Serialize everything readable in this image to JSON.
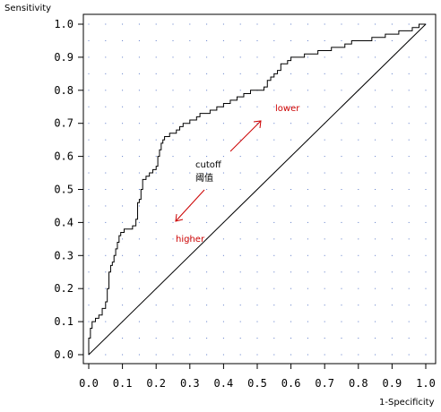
{
  "chart_data": {
    "type": "line",
    "ylabel": "Sensitivity",
    "xlabel": "1-Specificity",
    "xlim": [
      0,
      1
    ],
    "ylim": [
      0,
      1
    ],
    "xticks": [
      "0.0",
      "0.1",
      "0.2",
      "0.3",
      "0.4",
      "0.5",
      "0.6",
      "0.7",
      "0.8",
      "0.9",
      "1.0"
    ],
    "yticks": [
      "0.0",
      "0.1",
      "0.2",
      "0.3",
      "0.4",
      "0.5",
      "0.6",
      "0.7",
      "0.8",
      "0.9",
      "1.0"
    ],
    "grid": "dotted",
    "series": [
      {
        "x": [
          0,
          0,
          0.005,
          0.005,
          0.01,
          0.01,
          0.02,
          0.02,
          0.03,
          0.03,
          0.04,
          0.04,
          0.05,
          0.055,
          0.06,
          0.06,
          0.065,
          0.07,
          0.075,
          0.08,
          0.085,
          0.09,
          0.095,
          0.1,
          0.105,
          0.11,
          0.115,
          0.12,
          0.13,
          0.14,
          0.145,
          0.15,
          0.155,
          0.16,
          0.165,
          0.17,
          0.175,
          0.18,
          0.19,
          0.2,
          0.205,
          0.21,
          0.215,
          0.22,
          0.225,
          0.23,
          0.24,
          0.25,
          0.26,
          0.27,
          0.275,
          0.28,
          0.29,
          0.3,
          0.31,
          0.32,
          0.33,
          0.34,
          0.35,
          0.36,
          0.37,
          0.38,
          0.39,
          0.4,
          0.41,
          0.42,
          0.43,
          0.44,
          0.45,
          0.46,
          0.47,
          0.48,
          0.49,
          0.5,
          0.51,
          0.52,
          0.53,
          0.54,
          0.55,
          0.56,
          0.57,
          0.58,
          0.59,
          0.6,
          0.62,
          0.64,
          0.66,
          0.68,
          0.7,
          0.72,
          0.74,
          0.76,
          0.78,
          0.8,
          0.82,
          0.84,
          0.86,
          0.88,
          0.9,
          0.92,
          0.94,
          0.96,
          0.98,
          1.0
        ],
        "y": [
          0,
          0.05,
          0.05,
          0.08,
          0.08,
          0.1,
          0.1,
          0.11,
          0.11,
          0.12,
          0.12,
          0.14,
          0.16,
          0.2,
          0.22,
          0.25,
          0.27,
          0.28,
          0.3,
          0.32,
          0.34,
          0.36,
          0.37,
          0.37,
          0.38,
          0.38,
          0.38,
          0.38,
          0.39,
          0.41,
          0.46,
          0.47,
          0.5,
          0.53,
          0.53,
          0.54,
          0.54,
          0.55,
          0.56,
          0.57,
          0.6,
          0.62,
          0.64,
          0.65,
          0.66,
          0.66,
          0.67,
          0.67,
          0.68,
          0.69,
          0.69,
          0.7,
          0.7,
          0.71,
          0.71,
          0.72,
          0.73,
          0.73,
          0.73,
          0.74,
          0.74,
          0.75,
          0.75,
          0.76,
          0.76,
          0.77,
          0.77,
          0.78,
          0.78,
          0.79,
          0.79,
          0.8,
          0.8,
          0.8,
          0.8,
          0.81,
          0.83,
          0.84,
          0.85,
          0.86,
          0.88,
          0.88,
          0.89,
          0.9,
          0.9,
          0.91,
          0.91,
          0.92,
          0.92,
          0.93,
          0.93,
          0.94,
          0.95,
          0.95,
          0.95,
          0.96,
          0.96,
          0.97,
          0.97,
          0.98,
          0.98,
          0.99,
          1.0,
          1.0
        ]
      },
      {
        "x": [
          0,
          1
        ],
        "y": [
          0,
          1
        ]
      }
    ],
    "annotations": {
      "lower": "lower",
      "cutoff": "cutoff",
      "cutoff_cn": "阈值",
      "higher": "higher"
    }
  }
}
